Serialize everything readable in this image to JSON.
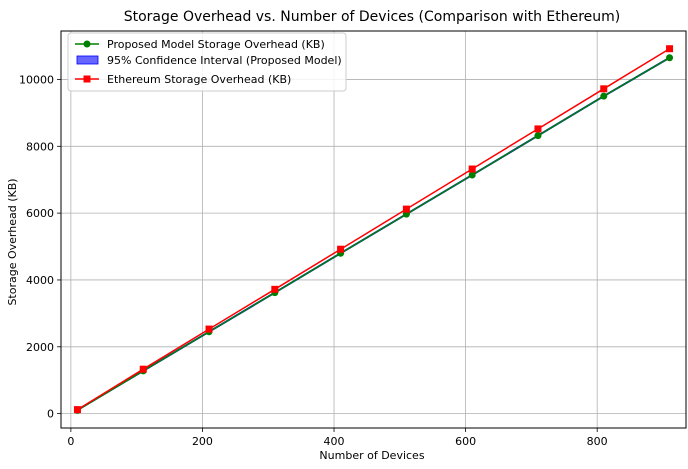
{
  "chart_data": {
    "type": "line",
    "title": "Storage Overhead vs. Number of Devices (Comparison with Ethereum)",
    "xlabel": "Number of Devices",
    "ylabel": "Storage Overhead (KB)",
    "xlim": [
      -15,
      935
    ],
    "ylim": [
      -430,
      11450
    ],
    "xticks": [
      0,
      200,
      400,
      600,
      800
    ],
    "yticks": [
      0,
      2000,
      4000,
      6000,
      8000,
      10000
    ],
    "grid": true,
    "legend_position": "top-left",
    "x": [
      10,
      110,
      210,
      310,
      410,
      510,
      610,
      710,
      810,
      910
    ],
    "series": [
      {
        "name": "Proposed Model Storage Overhead (KB)",
        "values": [
          100,
          1280,
          2450,
          3620,
          4800,
          5970,
          7140,
          8320,
          9500,
          10650
        ],
        "color": "#008000",
        "marker": "circle"
      },
      {
        "name": "Ethereum Storage Overhead (KB)",
        "values": [
          120,
          1330,
          2530,
          3720,
          4920,
          6120,
          7320,
          8520,
          9720,
          10920
        ],
        "color": "#ff0000",
        "marker": "square"
      }
    ],
    "confidence_band": {
      "name": "95% Confidence Interval (Proposed Model)",
      "lower": [
        90,
        1260,
        2430,
        3600,
        4780,
        5950,
        7120,
        8300,
        9480,
        10630
      ],
      "upper": [
        110,
        1300,
        2470,
        3640,
        4820,
        5990,
        7160,
        8340,
        9520,
        10670
      ],
      "color": "#0000ff"
    }
  }
}
